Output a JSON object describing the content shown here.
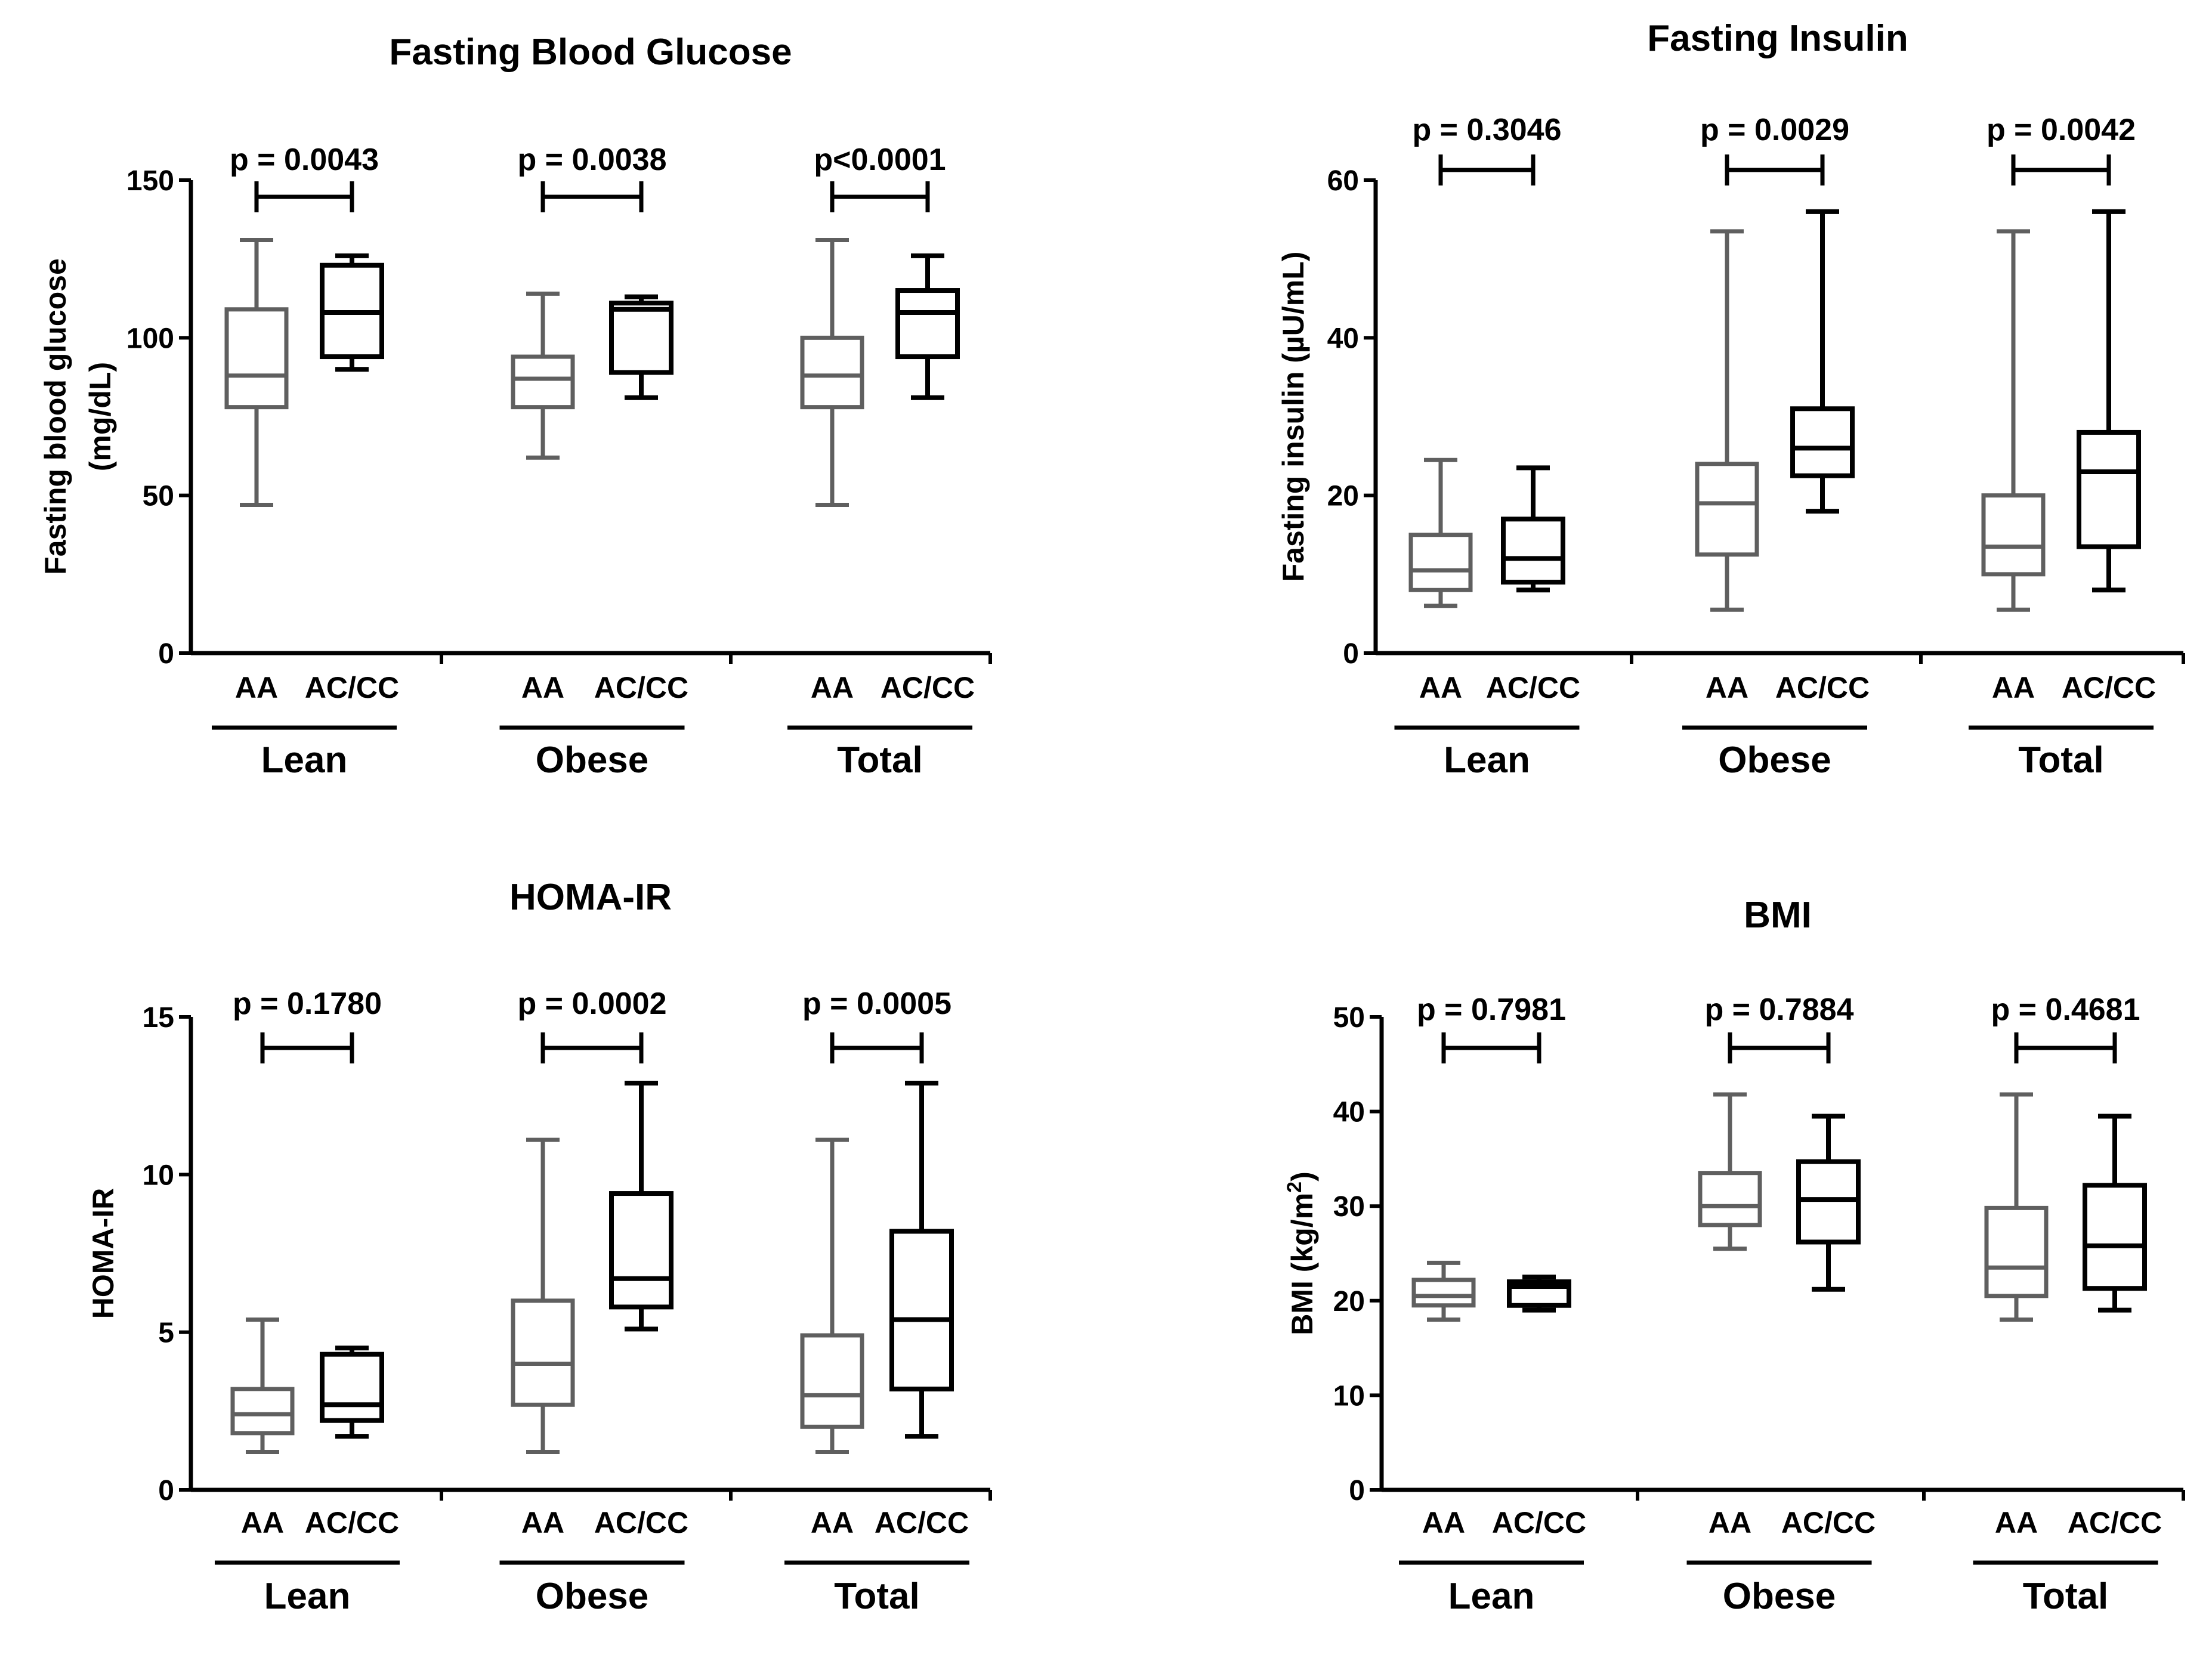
{
  "colors": {
    "aa": "#5f5f5f",
    "accc": "#000000",
    "axis": "#000000"
  },
  "chart_data": [
    {
      "type": "box",
      "title": "Fasting Blood Glucose",
      "ylabel": "Fasting blood glucose",
      "ylabel2": "(mg/dL)",
      "ylim": [
        0,
        150
      ],
      "yticks": [
        0,
        50,
        100,
        150
      ],
      "groups": [
        {
          "name": "Lean",
          "p": "p = 0.0043",
          "boxes": [
            {
              "label": "AA",
              "color": "#5f5f5f",
              "min": 47,
              "q1": 78,
              "median": 88,
              "q3": 109,
              "max": 131
            },
            {
              "label": "AC/CC",
              "color": "#000000",
              "min": 90,
              "q1": 94,
              "median": 108,
              "q3": 123,
              "max": 126
            }
          ]
        },
        {
          "name": "Obese",
          "p": "p = 0.0038",
          "boxes": [
            {
              "label": "AA",
              "color": "#5f5f5f",
              "min": 62,
              "q1": 78,
              "median": 87,
              "q3": 94,
              "max": 114
            },
            {
              "label": "AC/CC",
              "color": "#000000",
              "min": 81,
              "q1": 89,
              "median": 109,
              "q3": 111,
              "max": 113
            }
          ]
        },
        {
          "name": "Total",
          "p": "p<0.0001",
          "boxes": [
            {
              "label": "AA",
              "color": "#5f5f5f",
              "min": 47,
              "q1": 78,
              "median": 88,
              "q3": 100,
              "max": 131
            },
            {
              "label": "AC/CC",
              "color": "#000000",
              "min": 81,
              "q1": 94,
              "median": 108,
              "q3": 115,
              "max": 126
            }
          ]
        }
      ]
    },
    {
      "type": "box",
      "title": "Fasting Insulin",
      "ylabel": "Fasting insulin (µU/mL)",
      "ylabel2": "",
      "ylim": [
        0,
        60
      ],
      "yticks": [
        0,
        20,
        40,
        60
      ],
      "groups": [
        {
          "name": "Lean",
          "p": "p = 0.3046",
          "boxes": [
            {
              "label": "AA",
              "color": "#5f5f5f",
              "min": 6,
              "q1": 8,
              "median": 10.5,
              "q3": 15,
              "max": 24.5
            },
            {
              "label": "AC/CC",
              "color": "#000000",
              "min": 8,
              "q1": 9,
              "median": 12,
              "q3": 17,
              "max": 23.5
            }
          ]
        },
        {
          "name": "Obese",
          "p": "p = 0.0029",
          "boxes": [
            {
              "label": "AA",
              "color": "#5f5f5f",
              "min": 5.5,
              "q1": 12.5,
              "median": 19,
              "q3": 24,
              "max": 53.5
            },
            {
              "label": "AC/CC",
              "color": "#000000",
              "min": 18,
              "q1": 22.5,
              "median": 26,
              "q3": 31,
              "max": 56
            }
          ]
        },
        {
          "name": "Total",
          "p": "p = 0.0042",
          "boxes": [
            {
              "label": "AA",
              "color": "#5f5f5f",
              "min": 5.5,
              "q1": 10,
              "median": 13.5,
              "q3": 20,
              "max": 53.5
            },
            {
              "label": "AC/CC",
              "color": "#000000",
              "min": 8,
              "q1": 13.5,
              "median": 23,
              "q3": 28,
              "max": 56
            }
          ]
        }
      ]
    },
    {
      "type": "box",
      "title": "HOMA-IR",
      "ylabel": "HOMA-IR",
      "ylabel2": "",
      "ylim": [
        0,
        15
      ],
      "yticks": [
        0,
        5,
        10,
        15
      ],
      "groups": [
        {
          "name": "Lean",
          "p": "p = 0.1780",
          "boxes": [
            {
              "label": "AA",
              "color": "#5f5f5f",
              "min": 1.2,
              "q1": 1.8,
              "median": 2.4,
              "q3": 3.2,
              "max": 5.4
            },
            {
              "label": "AC/CC",
              "color": "#000000",
              "min": 1.7,
              "q1": 2.2,
              "median": 2.7,
              "q3": 4.3,
              "max": 4.5
            }
          ]
        },
        {
          "name": "Obese",
          "p": "p = 0.0002",
          "boxes": [
            {
              "label": "AA",
              "color": "#5f5f5f",
              "min": 1.2,
              "q1": 2.7,
              "median": 4.0,
              "q3": 6.0,
              "max": 11.1
            },
            {
              "label": "AC/CC",
              "color": "#000000",
              "min": 5.1,
              "q1": 5.8,
              "median": 6.7,
              "q3": 9.4,
              "max": 12.9
            }
          ]
        },
        {
          "name": "Total",
          "p": "p = 0.0005",
          "boxes": [
            {
              "label": "AA",
              "color": "#5f5f5f",
              "min": 1.2,
              "q1": 2.0,
              "median": 3.0,
              "q3": 4.9,
              "max": 11.1
            },
            {
              "label": "AC/CC",
              "color": "#000000",
              "min": 1.7,
              "q1": 3.2,
              "median": 5.4,
              "q3": 8.2,
              "max": 12.9
            }
          ]
        }
      ]
    },
    {
      "type": "box",
      "title": "BMI",
      "ylabel": "BMI (kg/m",
      "ylabel_sup": "2",
      "ylabel_end": ")",
      "ylabel2": "",
      "ylim": [
        0,
        50
      ],
      "yticks": [
        0,
        10,
        20,
        30,
        40,
        50
      ],
      "groups": [
        {
          "name": "Lean",
          "p": "p = 0.7981",
          "boxes": [
            {
              "label": "AA",
              "color": "#5f5f5f",
              "min": 18,
              "q1": 19.5,
              "median": 20.5,
              "q3": 22.2,
              "max": 24
            },
            {
              "label": "AC/CC",
              "color": "#000000",
              "min": 19,
              "q1": 19.5,
              "median": 21.5,
              "q3": 22,
              "max": 22.5
            }
          ]
        },
        {
          "name": "Obese",
          "p": "p = 0.7884",
          "boxes": [
            {
              "label": "AA",
              "color": "#5f5f5f",
              "min": 25.5,
              "q1": 28,
              "median": 30,
              "q3": 33.5,
              "max": 41.8
            },
            {
              "label": "AC/CC",
              "color": "#000000",
              "min": 21.2,
              "q1": 26.2,
              "median": 30.7,
              "q3": 34.7,
              "max": 39.5
            }
          ]
        },
        {
          "name": "Total",
          "p": "p = 0.4681",
          "boxes": [
            {
              "label": "AA",
              "color": "#5f5f5f",
              "min": 18,
              "q1": 20.5,
              "median": 23.5,
              "q3": 29.8,
              "max": 41.8
            },
            {
              "label": "AC/CC",
              "color": "#000000",
              "min": 19,
              "q1": 21.3,
              "median": 25.8,
              "q3": 32.2,
              "max": 39.5
            }
          ]
        }
      ]
    }
  ]
}
